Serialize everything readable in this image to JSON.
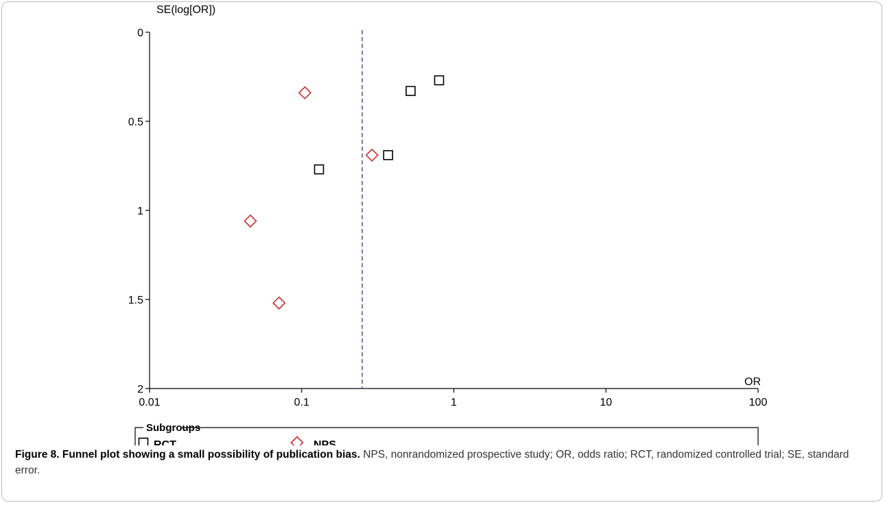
{
  "chart_data": {
    "type": "scatter",
    "xlabel": "OR",
    "ylabel": "SE(log[OR])",
    "x_scale": "log",
    "xlim": [
      0.01,
      100
    ],
    "ylim": [
      0,
      2
    ],
    "y_inverted": true,
    "x_ticks": [
      "0.01",
      "0.1",
      "1",
      "10",
      "100"
    ],
    "y_ticks": [
      "0",
      "0.5",
      "1",
      "1.5",
      "2"
    ],
    "reference_line": {
      "x": 0.25,
      "style": "dashed",
      "color": "#5555bb"
    },
    "series": [
      {
        "name": "RCT",
        "marker": "square",
        "color": "#000000",
        "points": [
          {
            "x": 0.8,
            "y": 0.27
          },
          {
            "x": 0.52,
            "y": 0.33
          },
          {
            "x": 0.37,
            "y": 0.69
          },
          {
            "x": 0.13,
            "y": 0.77
          }
        ]
      },
      {
        "name": "NPS",
        "marker": "diamond",
        "color": "#cc2b2b",
        "points": [
          {
            "x": 0.105,
            "y": 0.34
          },
          {
            "x": 0.29,
            "y": 0.69
          },
          {
            "x": 0.046,
            "y": 1.06
          },
          {
            "x": 0.071,
            "y": 1.52
          }
        ]
      }
    ],
    "legend": {
      "title": "Subgroups",
      "position": "bottom"
    }
  },
  "caption": {
    "bold": "Figure 8. Funnel plot showing a small possibility of publication bias.",
    "text": " NPS, nonrandomized prospective study; OR, odds ratio; RCT, randomized controlled trial; SE, standard error."
  }
}
